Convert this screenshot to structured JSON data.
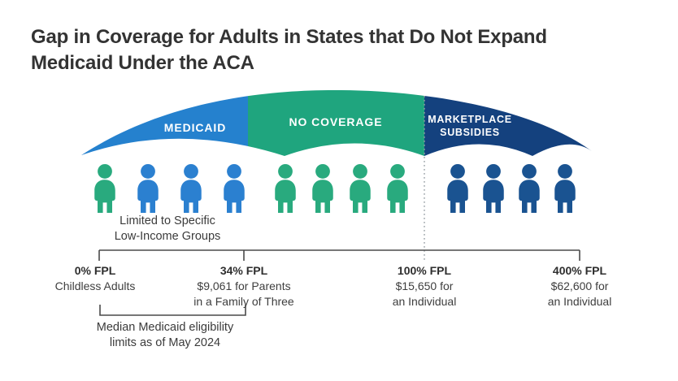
{
  "title": {
    "text": "Gap in Coverage for Adults in States that Do Not Expand\nMedicaid Under the ACA"
  },
  "canopy": {
    "sections": [
      {
        "id": "medicaid",
        "label": "MEDICAID"
      },
      {
        "id": "no-coverage",
        "label": "NO COVERAGE"
      },
      {
        "id": "marketplace-subsidies",
        "label": "MARKETPLACE\nSUBSIDIES"
      }
    ]
  },
  "people": {
    "palette": {
      "green": "#29AA7E",
      "blue": "#2B80D0",
      "navy": "#1A5391"
    },
    "groups": [
      {
        "name": "medicaid-group",
        "members": [
          "green",
          "blue",
          "blue",
          "blue"
        ]
      },
      {
        "name": "no-coverage-group",
        "members": [
          "green",
          "green",
          "green",
          "green"
        ]
      },
      {
        "name": "marketplace-group",
        "members": [
          "navy",
          "navy",
          "navy",
          "navy"
        ]
      }
    ]
  },
  "notes": {
    "limited": "Limited to Specific\nLow-Income Groups",
    "median": "Median Medicaid eligibility\nlimits as of May 2024"
  },
  "axis": {
    "markers": [
      {
        "fpl": "0% FPL",
        "sub": "Childless Adults"
      },
      {
        "fpl": "34% FPL",
        "sub": "$9,061 for Parents\nin a Family of Three"
      },
      {
        "fpl": "100% FPL",
        "sub": "$15,650 for\nan Individual"
      },
      {
        "fpl": "400% FPL",
        "sub": "$62,600 for\nan Individual"
      }
    ]
  },
  "colors": {
    "medicaid_blue": "#2581CE",
    "no_coverage_green": "#1FA57E",
    "marketplace_navy": "#14417E",
    "title_text": "#333333",
    "axis_gray": "#4A4A4A",
    "dotted_gray": "#98A0A6"
  }
}
